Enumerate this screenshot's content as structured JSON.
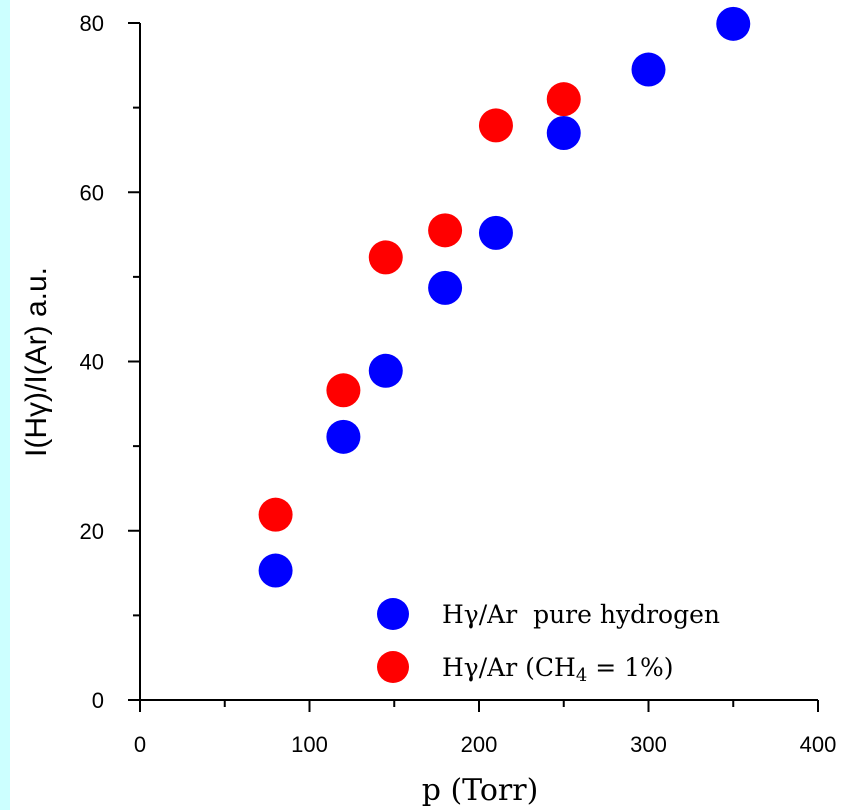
{
  "chart_data": {
    "type": "scatter",
    "xlabel": "p (Torr)",
    "ylabel": "I(Hγ)/I(Ar) a.u.",
    "xlim": [
      0,
      400
    ],
    "ylim": [
      0,
      80
    ],
    "x_ticks": [
      0,
      100,
      200,
      300,
      400
    ],
    "y_ticks": [
      0,
      20,
      40,
      60,
      80
    ],
    "grid": false,
    "legend_position": "bottom-right",
    "series": [
      {
        "name": "Hγ/Ar  pure hydrogen",
        "color": "#0000ff",
        "points": [
          {
            "x": 80,
            "y": 15.3
          },
          {
            "x": 120,
            "y": 31.1
          },
          {
            "x": 145,
            "y": 38.9
          },
          {
            "x": 180,
            "y": 48.7
          },
          {
            "x": 210,
            "y": 55.2
          },
          {
            "x": 250,
            "y": 67.0
          },
          {
            "x": 300,
            "y": 74.5
          },
          {
            "x": 350,
            "y": 79.9
          }
        ]
      },
      {
        "name": "Hγ/Ar (CH4 = 1%)",
        "color": "#ff0000",
        "points": [
          {
            "x": 80,
            "y": 21.9
          },
          {
            "x": 120,
            "y": 36.6
          },
          {
            "x": 145,
            "y": 52.3
          },
          {
            "x": 180,
            "y": 55.5
          },
          {
            "x": 210,
            "y": 67.9
          },
          {
            "x": 250,
            "y": 71.0
          }
        ]
      }
    ],
    "legend": {
      "entry1": "Hγ/Ar  pure hydrogen",
      "entry2_prefix": "Hγ/Ar (CH",
      "entry2_sub": "4",
      "entry2_suffix": " = 1%)"
    }
  }
}
